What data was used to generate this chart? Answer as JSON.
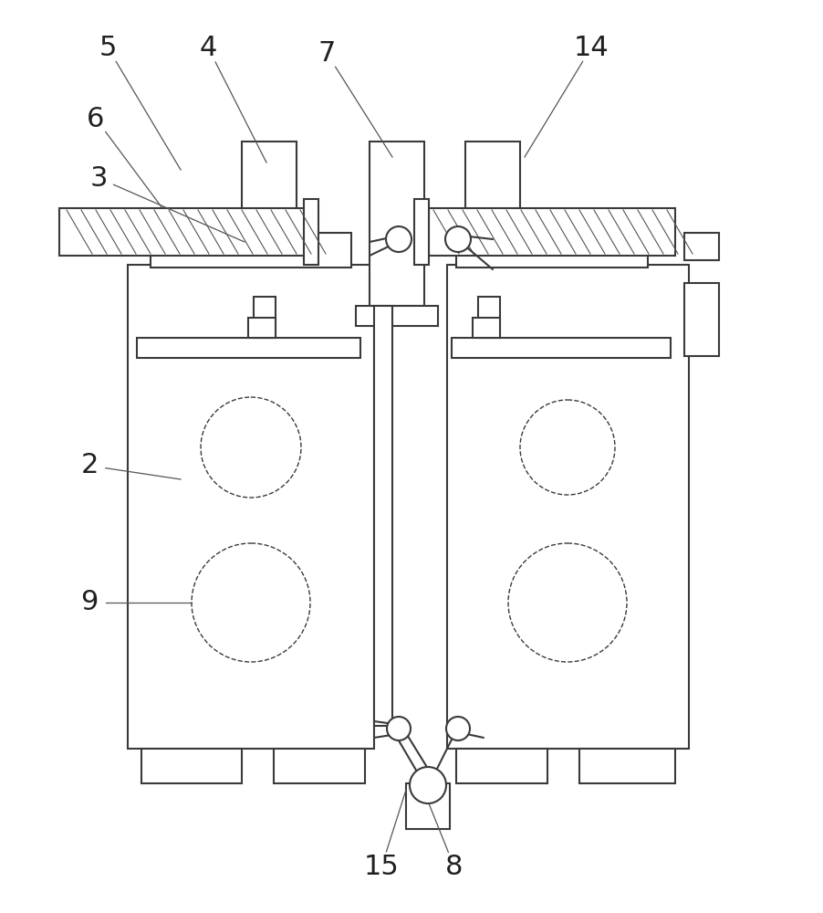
{
  "bg_color": "#ffffff",
  "line_color": "#3a3a3a",
  "lw": 1.5,
  "tlw": 1.0,
  "hatch_lw": 0.8
}
